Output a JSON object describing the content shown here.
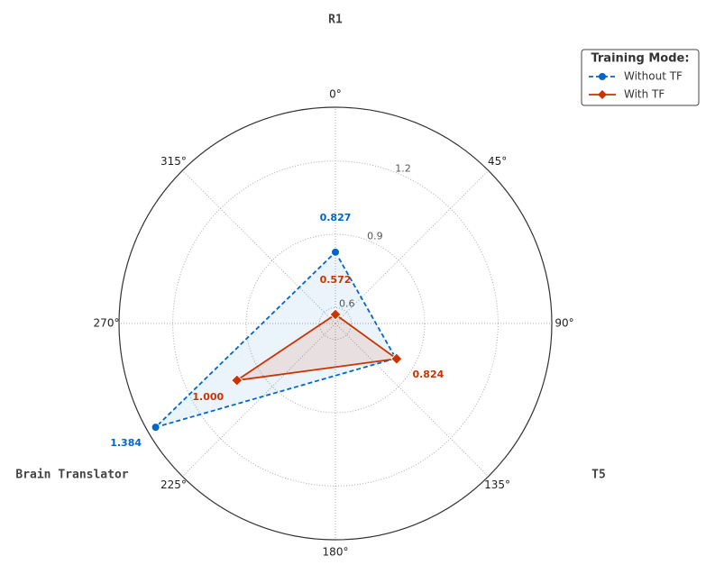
{
  "chart_data": {
    "type": "radar",
    "categories": [
      "R1",
      "T5",
      "Brain Translator"
    ],
    "theta": [
      0,
      120,
      240
    ],
    "series": [
      {
        "name": "Without TF",
        "color": "#0066cc",
        "dash": true,
        "marker": "circle",
        "values": [
          0.827,
          0.82,
          1.384
        ],
        "value_labels": [
          "0.827",
          "",
          "1.384"
        ]
      },
      {
        "name": "With TF",
        "color": "#cc3300",
        "dash": false,
        "marker": "diamond",
        "values": [
          0.572,
          0.824,
          1.0
        ],
        "value_labels": [
          "0.572",
          "0.824",
          "1.000"
        ]
      }
    ],
    "ylim": [
      0.535,
      1.42
    ],
    "yticks": [
      0.6,
      0.9,
      1.2
    ],
    "angular_ticks": [
      {
        "value": 0,
        "label": "0°"
      },
      {
        "value": 45,
        "label": "45°"
      },
      {
        "value": 90,
        "label": "90°"
      },
      {
        "value": 135,
        "label": "135°"
      },
      {
        "value": 180,
        "label": "180°"
      },
      {
        "value": 225,
        "label": "225°"
      },
      {
        "value": 270,
        "label": "270°"
      },
      {
        "value": 315,
        "label": "315°"
      }
    ],
    "legend_title": "Training Mode:",
    "legend": "upper right"
  }
}
